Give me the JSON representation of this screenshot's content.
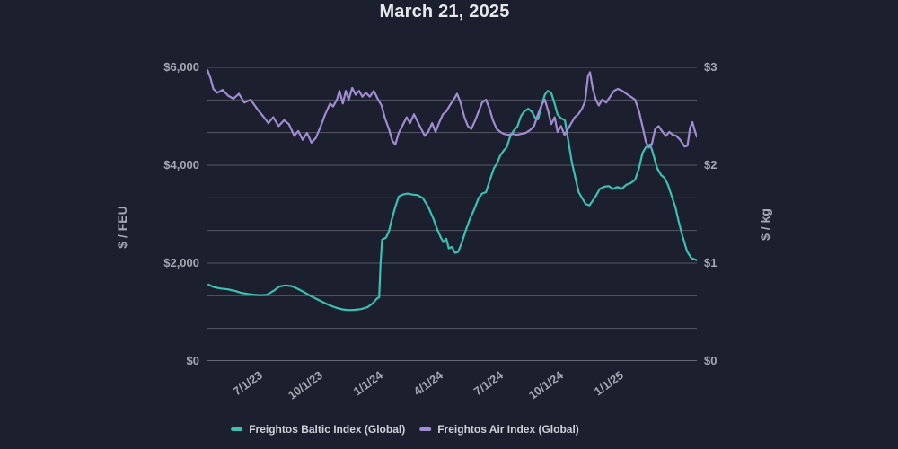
{
  "chart_data": {
    "type": "line",
    "title": "March 21, 2025",
    "background_color": "#1c1f2d",
    "grid_color": "#82868f",
    "tick_text_color": "#a4a8b2",
    "title_text_color": "#e6e8ec",
    "legend_position": "bottom",
    "x_ticks": [
      {
        "label": "7/1/23",
        "pos": 0.103
      },
      {
        "label": "10/1/23",
        "pos": 0.2255
      },
      {
        "label": "1/1/24",
        "pos": 0.348
      },
      {
        "label": "4/1/24",
        "pos": 0.4705
      },
      {
        "label": "7/1/24",
        "pos": 0.593
      },
      {
        "label": "10/1/24",
        "pos": 0.7155
      },
      {
        "label": "1/1/25",
        "pos": 0.838
      }
    ],
    "y_left": {
      "label": "$ / FEU",
      "range": [
        0,
        6000
      ],
      "tick_values": [
        0,
        2000,
        4000,
        6000
      ],
      "tick_labels": [
        "$0",
        "$2,000",
        "$4,000",
        "$6,000"
      ],
      "gridline_count": 10
    },
    "y_right": {
      "label": "$ / kg",
      "range": [
        0,
        3
      ],
      "tick_values": [
        0,
        1,
        2,
        3
      ],
      "tick_labels": [
        "$0",
        "$1",
        "$2",
        "$3"
      ]
    },
    "series": [
      {
        "name": "Freightos Baltic Index (Global)",
        "color": "#3bc0b4",
        "axis": "left",
        "points": [
          [
            0.004,
            1560
          ],
          [
            0.015,
            1510
          ],
          [
            0.029,
            1480
          ],
          [
            0.044,
            1465
          ],
          [
            0.059,
            1430
          ],
          [
            0.07,
            1395
          ],
          [
            0.084,
            1370
          ],
          [
            0.097,
            1355
          ],
          [
            0.11,
            1345
          ],
          [
            0.123,
            1355
          ],
          [
            0.136,
            1430
          ],
          [
            0.149,
            1525
          ],
          [
            0.161,
            1545
          ],
          [
            0.174,
            1530
          ],
          [
            0.187,
            1470
          ],
          [
            0.2,
            1400
          ],
          [
            0.212,
            1330
          ],
          [
            0.225,
            1265
          ],
          [
            0.238,
            1200
          ],
          [
            0.251,
            1140
          ],
          [
            0.264,
            1090
          ],
          [
            0.277,
            1055
          ],
          [
            0.29,
            1040
          ],
          [
            0.302,
            1045
          ],
          [
            0.315,
            1060
          ],
          [
            0.328,
            1100
          ],
          [
            0.339,
            1180
          ],
          [
            0.348,
            1280
          ],
          [
            0.352,
            1300
          ],
          [
            0.355,
            2000
          ],
          [
            0.358,
            2480
          ],
          [
            0.366,
            2520
          ],
          [
            0.372,
            2650
          ],
          [
            0.378,
            2900
          ],
          [
            0.385,
            3150
          ],
          [
            0.392,
            3360
          ],
          [
            0.4,
            3400
          ],
          [
            0.41,
            3420
          ],
          [
            0.42,
            3400
          ],
          [
            0.43,
            3390
          ],
          [
            0.441,
            3330
          ],
          [
            0.452,
            3150
          ],
          [
            0.463,
            2900
          ],
          [
            0.47,
            2700
          ],
          [
            0.478,
            2520
          ],
          [
            0.483,
            2430
          ],
          [
            0.489,
            2500
          ],
          [
            0.494,
            2300
          ],
          [
            0.5,
            2330
          ],
          [
            0.507,
            2210
          ],
          [
            0.513,
            2230
          ],
          [
            0.52,
            2400
          ],
          [
            0.528,
            2650
          ],
          [
            0.537,
            2900
          ],
          [
            0.546,
            3100
          ],
          [
            0.555,
            3330
          ],
          [
            0.562,
            3420
          ],
          [
            0.57,
            3450
          ],
          [
            0.578,
            3700
          ],
          [
            0.586,
            3940
          ],
          [
            0.592,
            4030
          ],
          [
            0.599,
            4200
          ],
          [
            0.606,
            4300
          ],
          [
            0.612,
            4365
          ],
          [
            0.619,
            4580
          ],
          [
            0.626,
            4700
          ],
          [
            0.634,
            4790
          ],
          [
            0.641,
            5000
          ],
          [
            0.648,
            5100
          ],
          [
            0.656,
            5155
          ],
          [
            0.663,
            5100
          ],
          [
            0.67,
            4975
          ],
          [
            0.676,
            4940
          ],
          [
            0.683,
            5200
          ],
          [
            0.69,
            5440
          ],
          [
            0.696,
            5520
          ],
          [
            0.703,
            5480
          ],
          [
            0.71,
            5250
          ],
          [
            0.716,
            5035
          ],
          [
            0.723,
            4960
          ],
          [
            0.731,
            4915
          ],
          [
            0.738,
            4490
          ],
          [
            0.745,
            4060
          ],
          [
            0.752,
            3755
          ],
          [
            0.759,
            3450
          ],
          [
            0.766,
            3330
          ],
          [
            0.773,
            3210
          ],
          [
            0.781,
            3180
          ],
          [
            0.788,
            3280
          ],
          [
            0.795,
            3390
          ],
          [
            0.802,
            3515
          ],
          [
            0.811,
            3560
          ],
          [
            0.82,
            3575
          ],
          [
            0.829,
            3515
          ],
          [
            0.838,
            3555
          ],
          [
            0.847,
            3520
          ],
          [
            0.856,
            3600
          ],
          [
            0.865,
            3635
          ],
          [
            0.874,
            3700
          ],
          [
            0.882,
            3940
          ],
          [
            0.889,
            4245
          ],
          [
            0.896,
            4365
          ],
          [
            0.905,
            4425
          ],
          [
            0.912,
            4190
          ],
          [
            0.919,
            3940
          ],
          [
            0.927,
            3800
          ],
          [
            0.934,
            3740
          ],
          [
            0.941,
            3600
          ],
          [
            0.948,
            3390
          ],
          [
            0.956,
            3150
          ],
          [
            0.963,
            2850
          ],
          [
            0.971,
            2540
          ],
          [
            0.98,
            2240
          ],
          [
            0.989,
            2100
          ],
          [
            1.0,
            2060
          ]
        ]
      },
      {
        "name": "Freightos Air Index (Global)",
        "color": "#a18cd4",
        "axis": "right",
        "points": [
          [
            0.002,
            2.97
          ],
          [
            0.008,
            2.89
          ],
          [
            0.014,
            2.78
          ],
          [
            0.022,
            2.74
          ],
          [
            0.033,
            2.77
          ],
          [
            0.044,
            2.71
          ],
          [
            0.055,
            2.68
          ],
          [
            0.066,
            2.73
          ],
          [
            0.077,
            2.64
          ],
          [
            0.09,
            2.67
          ],
          [
            0.104,
            2.57
          ],
          [
            0.117,
            2.49
          ],
          [
            0.126,
            2.43
          ],
          [
            0.136,
            2.49
          ],
          [
            0.147,
            2.4
          ],
          [
            0.158,
            2.46
          ],
          [
            0.168,
            2.42
          ],
          [
            0.179,
            2.3
          ],
          [
            0.187,
            2.35
          ],
          [
            0.196,
            2.26
          ],
          [
            0.205,
            2.33
          ],
          [
            0.214,
            2.23
          ],
          [
            0.223,
            2.28
          ],
          [
            0.233,
            2.4
          ],
          [
            0.242,
            2.52
          ],
          [
            0.252,
            2.63
          ],
          [
            0.258,
            2.6
          ],
          [
            0.266,
            2.67
          ],
          [
            0.271,
            2.76
          ],
          [
            0.278,
            2.63
          ],
          [
            0.284,
            2.76
          ],
          [
            0.29,
            2.67
          ],
          [
            0.297,
            2.79
          ],
          [
            0.304,
            2.72
          ],
          [
            0.311,
            2.76
          ],
          [
            0.318,
            2.7
          ],
          [
            0.325,
            2.74
          ],
          [
            0.333,
            2.7
          ],
          [
            0.341,
            2.76
          ],
          [
            0.35,
            2.67
          ],
          [
            0.357,
            2.61
          ],
          [
            0.364,
            2.48
          ],
          [
            0.372,
            2.37
          ],
          [
            0.379,
            2.25
          ],
          [
            0.385,
            2.21
          ],
          [
            0.392,
            2.33
          ],
          [
            0.399,
            2.4
          ],
          [
            0.408,
            2.49
          ],
          [
            0.415,
            2.43
          ],
          [
            0.423,
            2.52
          ],
          [
            0.43,
            2.45
          ],
          [
            0.438,
            2.37
          ],
          [
            0.445,
            2.3
          ],
          [
            0.452,
            2.34
          ],
          [
            0.46,
            2.43
          ],
          [
            0.467,
            2.34
          ],
          [
            0.474,
            2.43
          ],
          [
            0.482,
            2.52
          ],
          [
            0.489,
            2.55
          ],
          [
            0.496,
            2.61
          ],
          [
            0.504,
            2.67
          ],
          [
            0.511,
            2.73
          ],
          [
            0.518,
            2.64
          ],
          [
            0.526,
            2.49
          ],
          [
            0.533,
            2.4
          ],
          [
            0.54,
            2.37
          ],
          [
            0.548,
            2.46
          ],
          [
            0.555,
            2.55
          ],
          [
            0.562,
            2.64
          ],
          [
            0.57,
            2.67
          ],
          [
            0.577,
            2.58
          ],
          [
            0.584,
            2.46
          ],
          [
            0.592,
            2.37
          ],
          [
            0.599,
            2.34
          ],
          [
            0.606,
            2.32
          ],
          [
            0.615,
            2.31
          ],
          [
            0.624,
            2.32
          ],
          [
            0.633,
            2.31
          ],
          [
            0.642,
            2.32
          ],
          [
            0.651,
            2.33
          ],
          [
            0.66,
            2.36
          ],
          [
            0.668,
            2.4
          ],
          [
            0.676,
            2.52
          ],
          [
            0.683,
            2.61
          ],
          [
            0.69,
            2.67
          ],
          [
            0.697,
            2.55
          ],
          [
            0.703,
            2.42
          ],
          [
            0.71,
            2.49
          ],
          [
            0.716,
            2.34
          ],
          [
            0.723,
            2.4
          ],
          [
            0.73,
            2.31
          ],
          [
            0.737,
            2.37
          ],
          [
            0.744,
            2.43
          ],
          [
            0.751,
            2.49
          ],
          [
            0.758,
            2.52
          ],
          [
            0.766,
            2.58
          ],
          [
            0.772,
            2.65
          ],
          [
            0.778,
            2.91
          ],
          [
            0.782,
            2.95
          ],
          [
            0.788,
            2.78
          ],
          [
            0.794,
            2.67
          ],
          [
            0.8,
            2.61
          ],
          [
            0.807,
            2.67
          ],
          [
            0.815,
            2.64
          ],
          [
            0.823,
            2.7
          ],
          [
            0.831,
            2.76
          ],
          [
            0.839,
            2.78
          ],
          [
            0.848,
            2.76
          ],
          [
            0.856,
            2.73
          ],
          [
            0.865,
            2.7
          ],
          [
            0.874,
            2.67
          ],
          [
            0.882,
            2.55
          ],
          [
            0.889,
            2.4
          ],
          [
            0.896,
            2.24
          ],
          [
            0.902,
            2.18
          ],
          [
            0.908,
            2.21
          ],
          [
            0.915,
            2.37
          ],
          [
            0.922,
            2.4
          ],
          [
            0.93,
            2.34
          ],
          [
            0.937,
            2.3
          ],
          [
            0.944,
            2.34
          ],
          [
            0.951,
            2.31
          ],
          [
            0.958,
            2.3
          ],
          [
            0.966,
            2.26
          ],
          [
            0.975,
            2.19
          ],
          [
            0.981,
            2.2
          ],
          [
            0.986,
            2.38
          ],
          [
            0.991,
            2.44
          ],
          [
            0.996,
            2.35
          ],
          [
            1.0,
            2.29
          ]
        ]
      }
    ]
  }
}
